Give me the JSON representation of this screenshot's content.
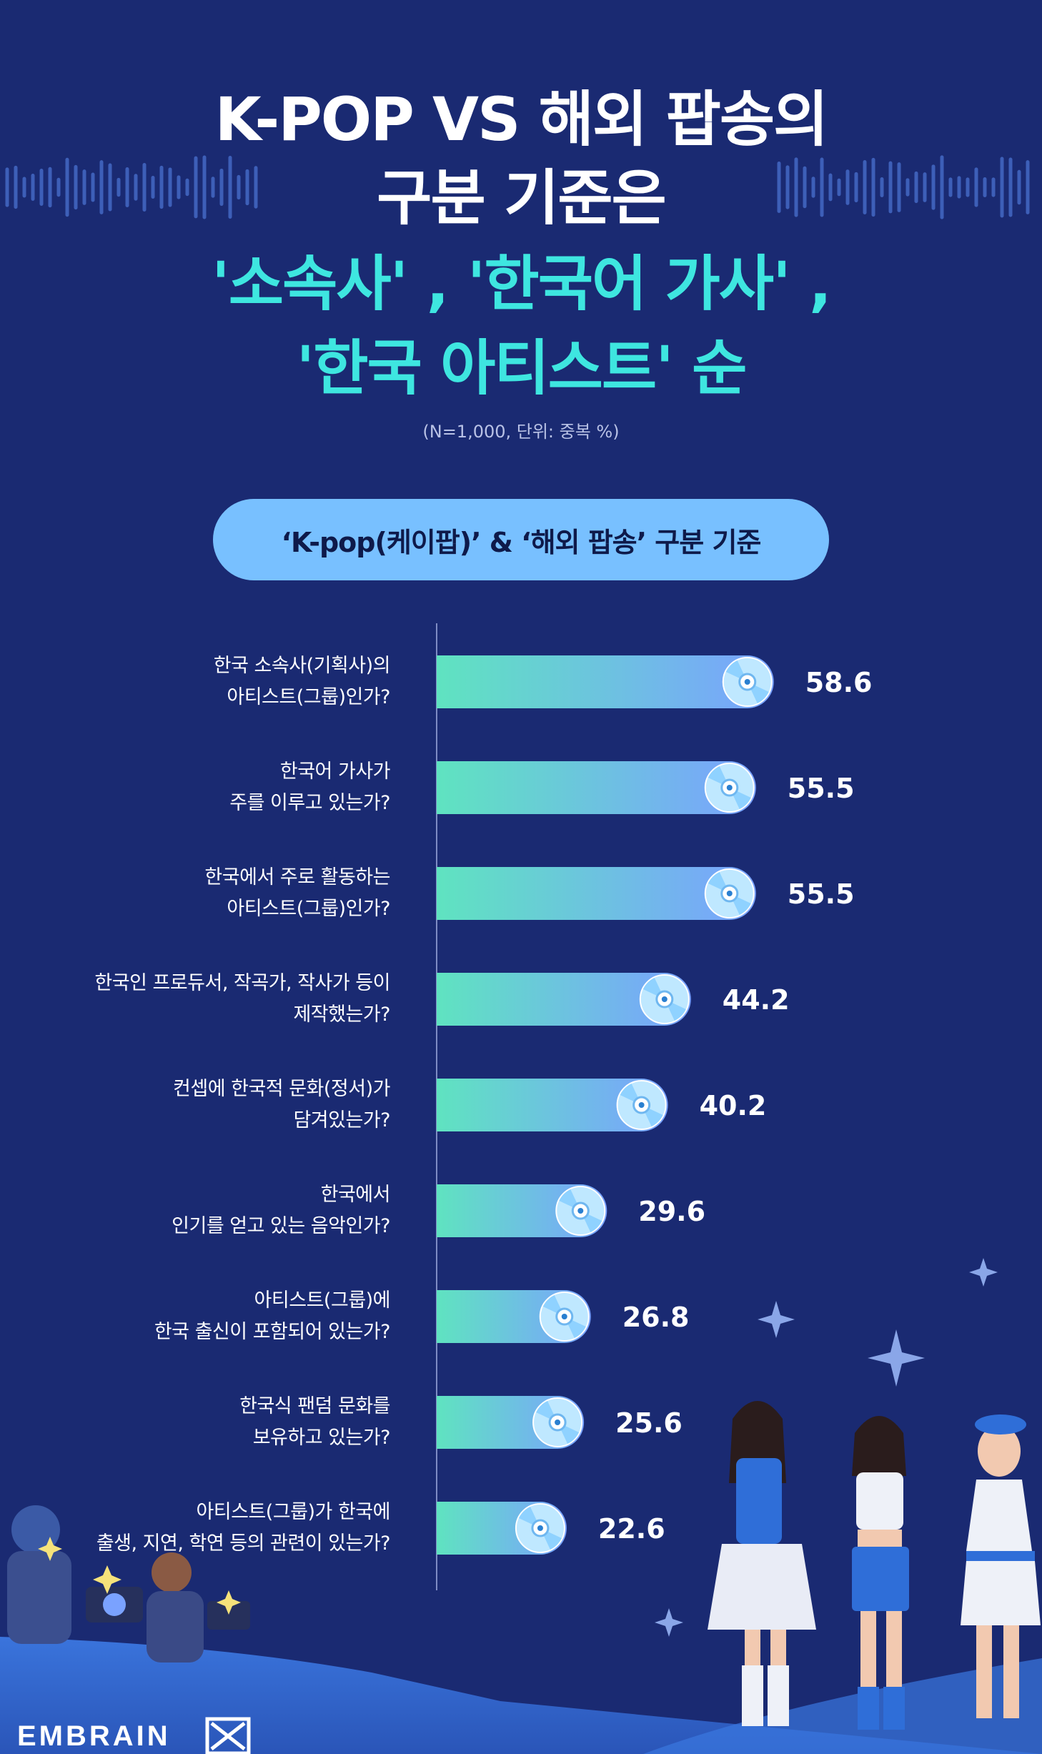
{
  "header": {
    "title_lines": [
      {
        "text": "K-POP VS 해외 팝송의",
        "accent": false
      },
      {
        "text": "구분 기준은",
        "accent": false
      },
      {
        "text": "'소속사' , '한국어 가사' ,",
        "accent": true
      },
      {
        "text": "'한국 아티스트' 순",
        "accent": true
      }
    ],
    "note": "(N=1,000, 단위: 중복 %)"
  },
  "pill_label": "‘K-pop(케이팝)’ & ‘해외 팝송’ 구분 기준",
  "brand": "EMBRAIN",
  "colors": {
    "background": "#1a2a72",
    "accent_text": "#3ee6e0",
    "bar_start": "#5fe3c0",
    "bar_end": "#7aa2ff",
    "pill": "#78c0ff",
    "ground": "#2f62c8"
  },
  "chart_data": {
    "type": "bar",
    "orientation": "horizontal",
    "title": "‘K-pop(케이팝)’ & ‘해외 팝송’ 구분 기준",
    "unit": "%",
    "categories": [
      [
        "한국 소속사(기획사)의",
        "아티스트(그룹)인가?"
      ],
      [
        "한국어 가사가",
        "주를 이루고 있는가?"
      ],
      [
        "한국에서 주로 활동하는",
        "아티스트(그룹)인가?"
      ],
      [
        "한국인 프로듀서, 작곡가, 작사가 등이",
        "제작했는가?"
      ],
      [
        "컨셉에 한국적 문화(정서)가",
        "담겨있는가?"
      ],
      [
        "한국에서",
        "인기를 얻고 있는 음악인가?"
      ],
      [
        "아티스트(그룹)에",
        "한국 출신이 포함되어 있는가?"
      ],
      [
        "한국식 팬덤 문화를",
        "보유하고 있는가?"
      ],
      [
        "아티스트(그룹)가 한국에",
        "출생, 지연, 학연 등의 관련이 있는가?"
      ]
    ],
    "values": [
      58.6,
      55.5,
      55.5,
      44.2,
      40.2,
      29.6,
      26.8,
      25.6,
      22.6
    ],
    "value_labels": [
      "58.6",
      "55.5",
      "55.5",
      "44.2",
      "40.2",
      "29.6",
      "26.8",
      "25.6",
      "22.6"
    ],
    "xlim": [
      0,
      60
    ]
  }
}
